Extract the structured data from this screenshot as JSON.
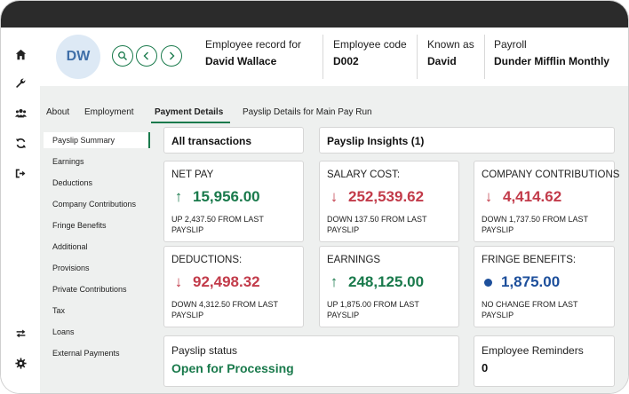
{
  "header": {
    "avatar_initials": "DW",
    "employee_record_label": "Employee record for",
    "employee_record_value": "David Wallace",
    "employee_code_label": "Employee code",
    "employee_code_value": "D002",
    "known_as_label": "Known as",
    "known_as_value": "David",
    "payroll_label": "Payroll",
    "payroll_value": "Dunder Mifflin Monthly"
  },
  "rail": {
    "top_icons": [
      "home-icon",
      "wrench-icon",
      "people-icon",
      "sync-icon",
      "logout-icon"
    ],
    "bottom_icons": [
      "swap-icon",
      "settings-icon"
    ]
  },
  "tabs": {
    "about": "About",
    "employment": "Employment",
    "payment_details": "Payment Details",
    "payslip_details": "Payslip Details for Main Pay Run"
  },
  "sidenav": {
    "items": [
      "Payslip Summary",
      "Earnings",
      "Deductions",
      "Company Contributions",
      "Fringe Benefits",
      "Additional",
      "Provisions",
      "Private Contributions",
      "Tax",
      "Loans",
      "External Payments"
    ],
    "active_index": 0
  },
  "sections": {
    "all_transactions": "All transactions",
    "payslip_insights": "Payslip Insights (1)"
  },
  "metrics": {
    "net_pay": {
      "label": "NET PAY",
      "value": "15,956.00",
      "sub": "UP 2,437.50 FROM LAST PAYSLIP",
      "trend": "up"
    },
    "salary_cost": {
      "label": "SALARY COST:",
      "value": "252,539.62",
      "sub": "DOWN 137.50 FROM LAST PAYSLIP",
      "trend": "down"
    },
    "company_contributions": {
      "label": "COMPANY CONTRIBUTIONS",
      "value": "4,414.62",
      "sub": "DOWN 1,737.50 FROM LAST PAYSLIP",
      "trend": "down"
    },
    "deductions": {
      "label": "DEDUCTIONS:",
      "value": "92,498.32",
      "sub": "DOWN 4,312.50 FROM LAST PAYSLIP",
      "trend": "down"
    },
    "earnings": {
      "label": "EARNINGS",
      "value": "248,125.00",
      "sub": "UP 1,875.00 FROM LAST PAYSLIP",
      "trend": "up"
    },
    "fringe_benefits": {
      "label": "FRINGE BENEFITS:",
      "value": "1,875.00",
      "sub": "NO CHANGE FROM LAST PAYSLIP",
      "trend": "none"
    }
  },
  "payslip_status": {
    "label": "Payslip status",
    "value": "Open for Processing"
  },
  "employee_reminders": {
    "label": "Employee Reminders",
    "value": "0"
  },
  "colors": {
    "accent": "#1a7a4c",
    "up": "#1a7a4c",
    "down": "#c23b4a",
    "neutral": "#1d4f9b",
    "topbar": "#2b2b2b"
  }
}
